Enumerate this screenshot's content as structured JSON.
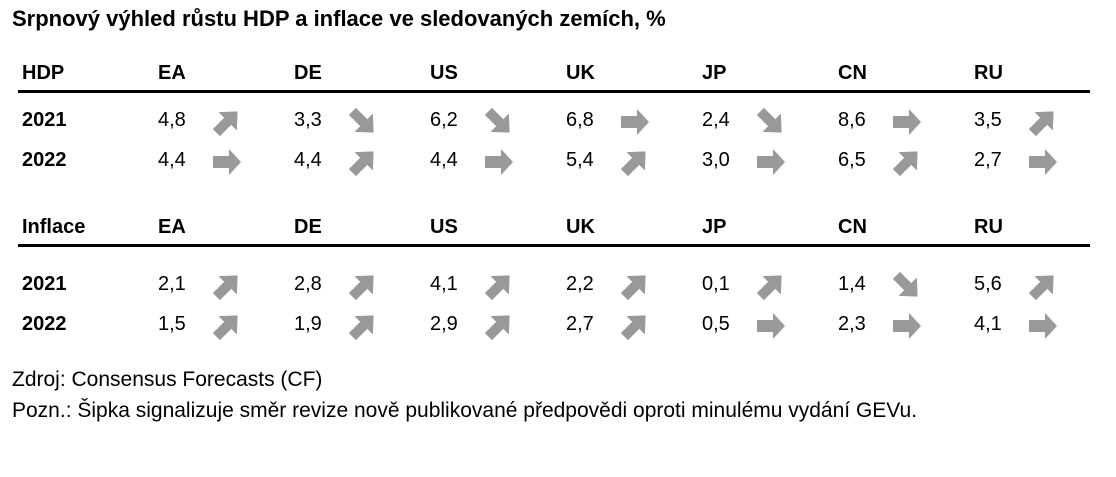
{
  "title": "Srpnový výhled růstu HDP a inflace ve sledovaných zemích, %",
  "colors": {
    "arrow": "#999999",
    "rule": "#000000"
  },
  "tables": [
    {
      "header": "HDP",
      "countries": [
        "EA",
        "DE",
        "US",
        "UK",
        "JP",
        "CN",
        "RU"
      ],
      "rows": [
        {
          "year": "2021",
          "cells": [
            {
              "value": "4,8",
              "arrow": "up"
            },
            {
              "value": "3,3",
              "arrow": "down"
            },
            {
              "value": "6,2",
              "arrow": "down"
            },
            {
              "value": "6,8",
              "arrow": "right"
            },
            {
              "value": "2,4",
              "arrow": "down"
            },
            {
              "value": "8,6",
              "arrow": "right"
            },
            {
              "value": "3,5",
              "arrow": "up"
            }
          ]
        },
        {
          "year": "2022",
          "cells": [
            {
              "value": "4,4",
              "arrow": "right"
            },
            {
              "value": "4,4",
              "arrow": "up"
            },
            {
              "value": "4,4",
              "arrow": "right"
            },
            {
              "value": "5,4",
              "arrow": "up"
            },
            {
              "value": "3,0",
              "arrow": "right"
            },
            {
              "value": "6,5",
              "arrow": "up"
            },
            {
              "value": "2,7",
              "arrow": "right"
            }
          ]
        }
      ]
    },
    {
      "header": "Inflace",
      "countries": [
        "EA",
        "DE",
        "US",
        "UK",
        "JP",
        "CN",
        "RU"
      ],
      "rows": [
        {
          "year": "2021",
          "cells": [
            {
              "value": "2,1",
              "arrow": "up"
            },
            {
              "value": "2,8",
              "arrow": "up"
            },
            {
              "value": "4,1",
              "arrow": "up"
            },
            {
              "value": "2,2",
              "arrow": "up"
            },
            {
              "value": "0,1",
              "arrow": "up"
            },
            {
              "value": "1,4",
              "arrow": "down"
            },
            {
              "value": "5,6",
              "arrow": "up"
            }
          ]
        },
        {
          "year": "2022",
          "cells": [
            {
              "value": "1,5",
              "arrow": "up"
            },
            {
              "value": "1,9",
              "arrow": "up"
            },
            {
              "value": "2,9",
              "arrow": "up"
            },
            {
              "value": "2,7",
              "arrow": "up"
            },
            {
              "value": "0,5",
              "arrow": "right"
            },
            {
              "value": "2,3",
              "arrow": "right"
            },
            {
              "value": "4,1",
              "arrow": "right"
            }
          ]
        }
      ]
    }
  ],
  "notes": {
    "source": "Zdroj: Consensus Forecasts (CF)",
    "note": "Pozn.: Šipka signalizuje směr revize nově publikované předpovědi oproti minulému vydání GEVu."
  }
}
